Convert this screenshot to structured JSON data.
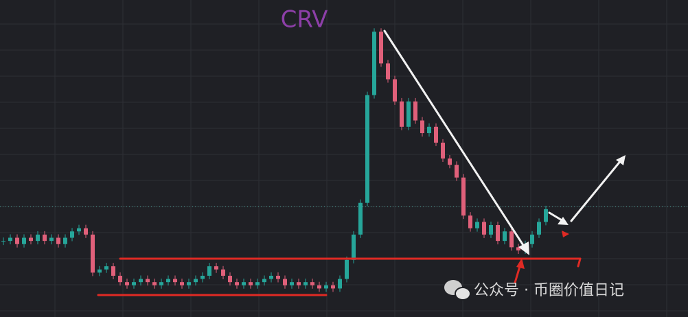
{
  "chart_data": {
    "type": "candlestick",
    "title": "CRV",
    "watermark": "公众号 · 币圈价值日记",
    "ylim": [
      0,
      100
    ],
    "up_color": "#26a69a",
    "down_color": "#e0607a",
    "open": [
      24,
      24,
      25,
      23,
      25,
      24,
      26,
      24,
      25,
      23,
      25,
      27,
      28,
      26,
      14,
      15,
      16,
      13,
      11,
      10,
      11,
      12,
      11,
      10,
      11,
      12,
      11,
      10,
      11,
      12,
      13,
      16,
      15,
      13,
      11,
      10,
      11,
      10,
      11,
      12,
      13,
      12,
      10,
      11,
      10,
      11,
      10,
      9,
      10,
      9,
      12,
      18,
      26,
      36,
      70,
      90,
      80,
      75,
      68,
      60,
      68,
      62,
      58,
      60,
      55,
      50,
      48,
      44,
      32,
      28,
      30,
      26,
      29,
      24,
      27,
      22,
      21,
      23,
      26,
      30
    ],
    "close": [
      24,
      25,
      23,
      25,
      24,
      26,
      24,
      25,
      23,
      25,
      27,
      28,
      26,
      14,
      15,
      16,
      13,
      11,
      10,
      11,
      12,
      11,
      10,
      11,
      12,
      11,
      10,
      11,
      12,
      13,
      16,
      15,
      13,
      11,
      10,
      11,
      10,
      11,
      12,
      13,
      12,
      10,
      11,
      10,
      11,
      10,
      9,
      10,
      9,
      12,
      18,
      26,
      36,
      70,
      90,
      80,
      75,
      68,
      60,
      68,
      62,
      58,
      60,
      55,
      50,
      48,
      44,
      32,
      28,
      30,
      26,
      29,
      24,
      27,
      22,
      21,
      23,
      26,
      30,
      34
    ]
  }
}
